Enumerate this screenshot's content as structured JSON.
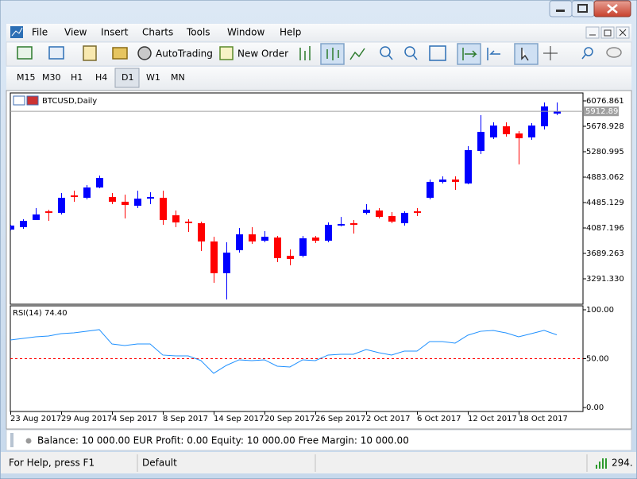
{
  "window": {
    "menu": [
      "File",
      "View",
      "Insert",
      "Charts",
      "Tools",
      "Window",
      "Help"
    ],
    "toolbar": [
      "AutoTrading",
      "New Order"
    ],
    "timeframes": [
      "M15",
      "M30",
      "H1",
      "H4",
      "D1",
      "W1",
      "MN"
    ],
    "account": "Balance: 10 000.00 EUR  Profit: 0.00  Equity: 10 000.00  Free Margin: 10 000.00",
    "status": {
      "help": "For Help, press F1",
      "profile": "Default",
      "connection": "294."
    }
  },
  "chart_data": [
    {
      "type": "candlestick",
      "title": "BTCUSD,Daily",
      "categories": [
        "23 Aug 2017",
        null,
        null,
        null,
        "29 Aug 2017",
        null,
        null,
        null,
        "4 Sep 2017",
        null,
        null,
        null,
        "8 Sep 2017",
        null,
        null,
        null,
        "14 Sep 2017",
        null,
        null,
        null,
        "20 Sep 2017",
        null,
        null,
        null,
        "26 Sep 2017",
        null,
        null,
        null,
        "2 Oct 2017",
        null,
        null,
        null,
        "6 Oct 2017",
        null,
        null,
        null,
        "12 Oct 2017",
        null,
        null,
        null,
        "18 Oct 2017",
        null,
        null,
        null
      ],
      "open": [
        4062,
        4100,
        4212,
        4348,
        4324,
        4597,
        4560,
        4721,
        4572,
        4498,
        4435,
        4547,
        4560,
        4286,
        4187,
        4162,
        3876,
        3379,
        3739,
        3988,
        3888,
        3938,
        3652,
        3652,
        3938,
        3888,
        4125,
        4162,
        4324,
        4361,
        4274,
        4162,
        4348,
        4560,
        4809,
        4846,
        4784,
        5293,
        5505,
        5679,
        5567,
        5505,
        5679,
        5878
      ],
      "high": [
        4137,
        4224,
        4398,
        4373,
        4634,
        4672,
        4759,
        4908,
        4634,
        4610,
        4672,
        4647,
        4672,
        4361,
        4224,
        4187,
        3950,
        3863,
        4087,
        4100,
        4038,
        3963,
        3752,
        3963,
        3963,
        4174,
        4261,
        4212,
        4460,
        4398,
        4336,
        4348,
        4398,
        4846,
        4896,
        4896,
        5368,
        5853,
        5741,
        5741,
        5604,
        5729,
        6052,
        6052
      ],
      "low": [
        4050,
        4075,
        4212,
        4199,
        4299,
        4498,
        4535,
        4709,
        4460,
        4237,
        4398,
        4460,
        4137,
        4100,
        4025,
        3727,
        3229,
        2968,
        3702,
        3839,
        3863,
        3553,
        3503,
        3627,
        3851,
        3863,
        4112,
        4000,
        4299,
        4237,
        4162,
        4125,
        4274,
        4535,
        4784,
        4684,
        4771,
        5244,
        5480,
        5517,
        5082,
        5468,
        5629,
        5853
      ],
      "close": [
        4125,
        4199,
        4299,
        4324,
        4560,
        4572,
        4721,
        4871,
        4498,
        4448,
        4547,
        4572,
        4212,
        4174,
        4162,
        3876,
        3379,
        3702,
        3988,
        3876,
        3950,
        3615,
        3602,
        3926,
        3888,
        4137,
        4149,
        4137,
        4373,
        4261,
        4187,
        4324,
        4324,
        4809,
        4846,
        4809,
        5306,
        5592,
        5691,
        5555,
        5492,
        5691,
        5990,
        5912.89
      ],
      "up_color": "#0000ff",
      "down_color": "#ff0000",
      "ylim": [
        2893.4,
        6188.8
      ],
      "yticks": [
        6076.861,
        5678.928,
        5280.995,
        4883.062,
        4485.129,
        4087.196,
        3689.263,
        {
          "value": 3291.33,
          "label": "3291.330"
        }
      ],
      "bid": {
        "value": 5912.89,
        "label": "5912.890"
      }
    },
    {
      "type": "line",
      "title": "RSI(14) 74.40",
      "color": "#1e90ff",
      "values": [
        69.1,
        70.7,
        72.4,
        73.2,
        75.6,
        76.4,
        78,
        79.7,
        65,
        63.4,
        65,
        65,
        53.7,
        52.8,
        52.8,
        48,
        35,
        43.1,
        48.8,
        48,
        48.8,
        42.3,
        41.5,
        48.8,
        48,
        53.7,
        54.5,
        54.5,
        59.3,
        56.1,
        53.7,
        57.7,
        57.7,
        67.5,
        67.5,
        65.9,
        74,
        78,
        78.9,
        76.4,
        72.4,
        75.6,
        78.9,
        74.4
      ],
      "ylim": [
        -3.25,
        103.25
      ],
      "yticks": [
        {
          "value": 100,
          "label": "100.00"
        },
        {
          "value": 50,
          "label": "50.00"
        },
        {
          "value": 0,
          "label": "0.00"
        }
      ],
      "levels": [
        50
      ],
      "level_color": "#ff0000"
    }
  ]
}
